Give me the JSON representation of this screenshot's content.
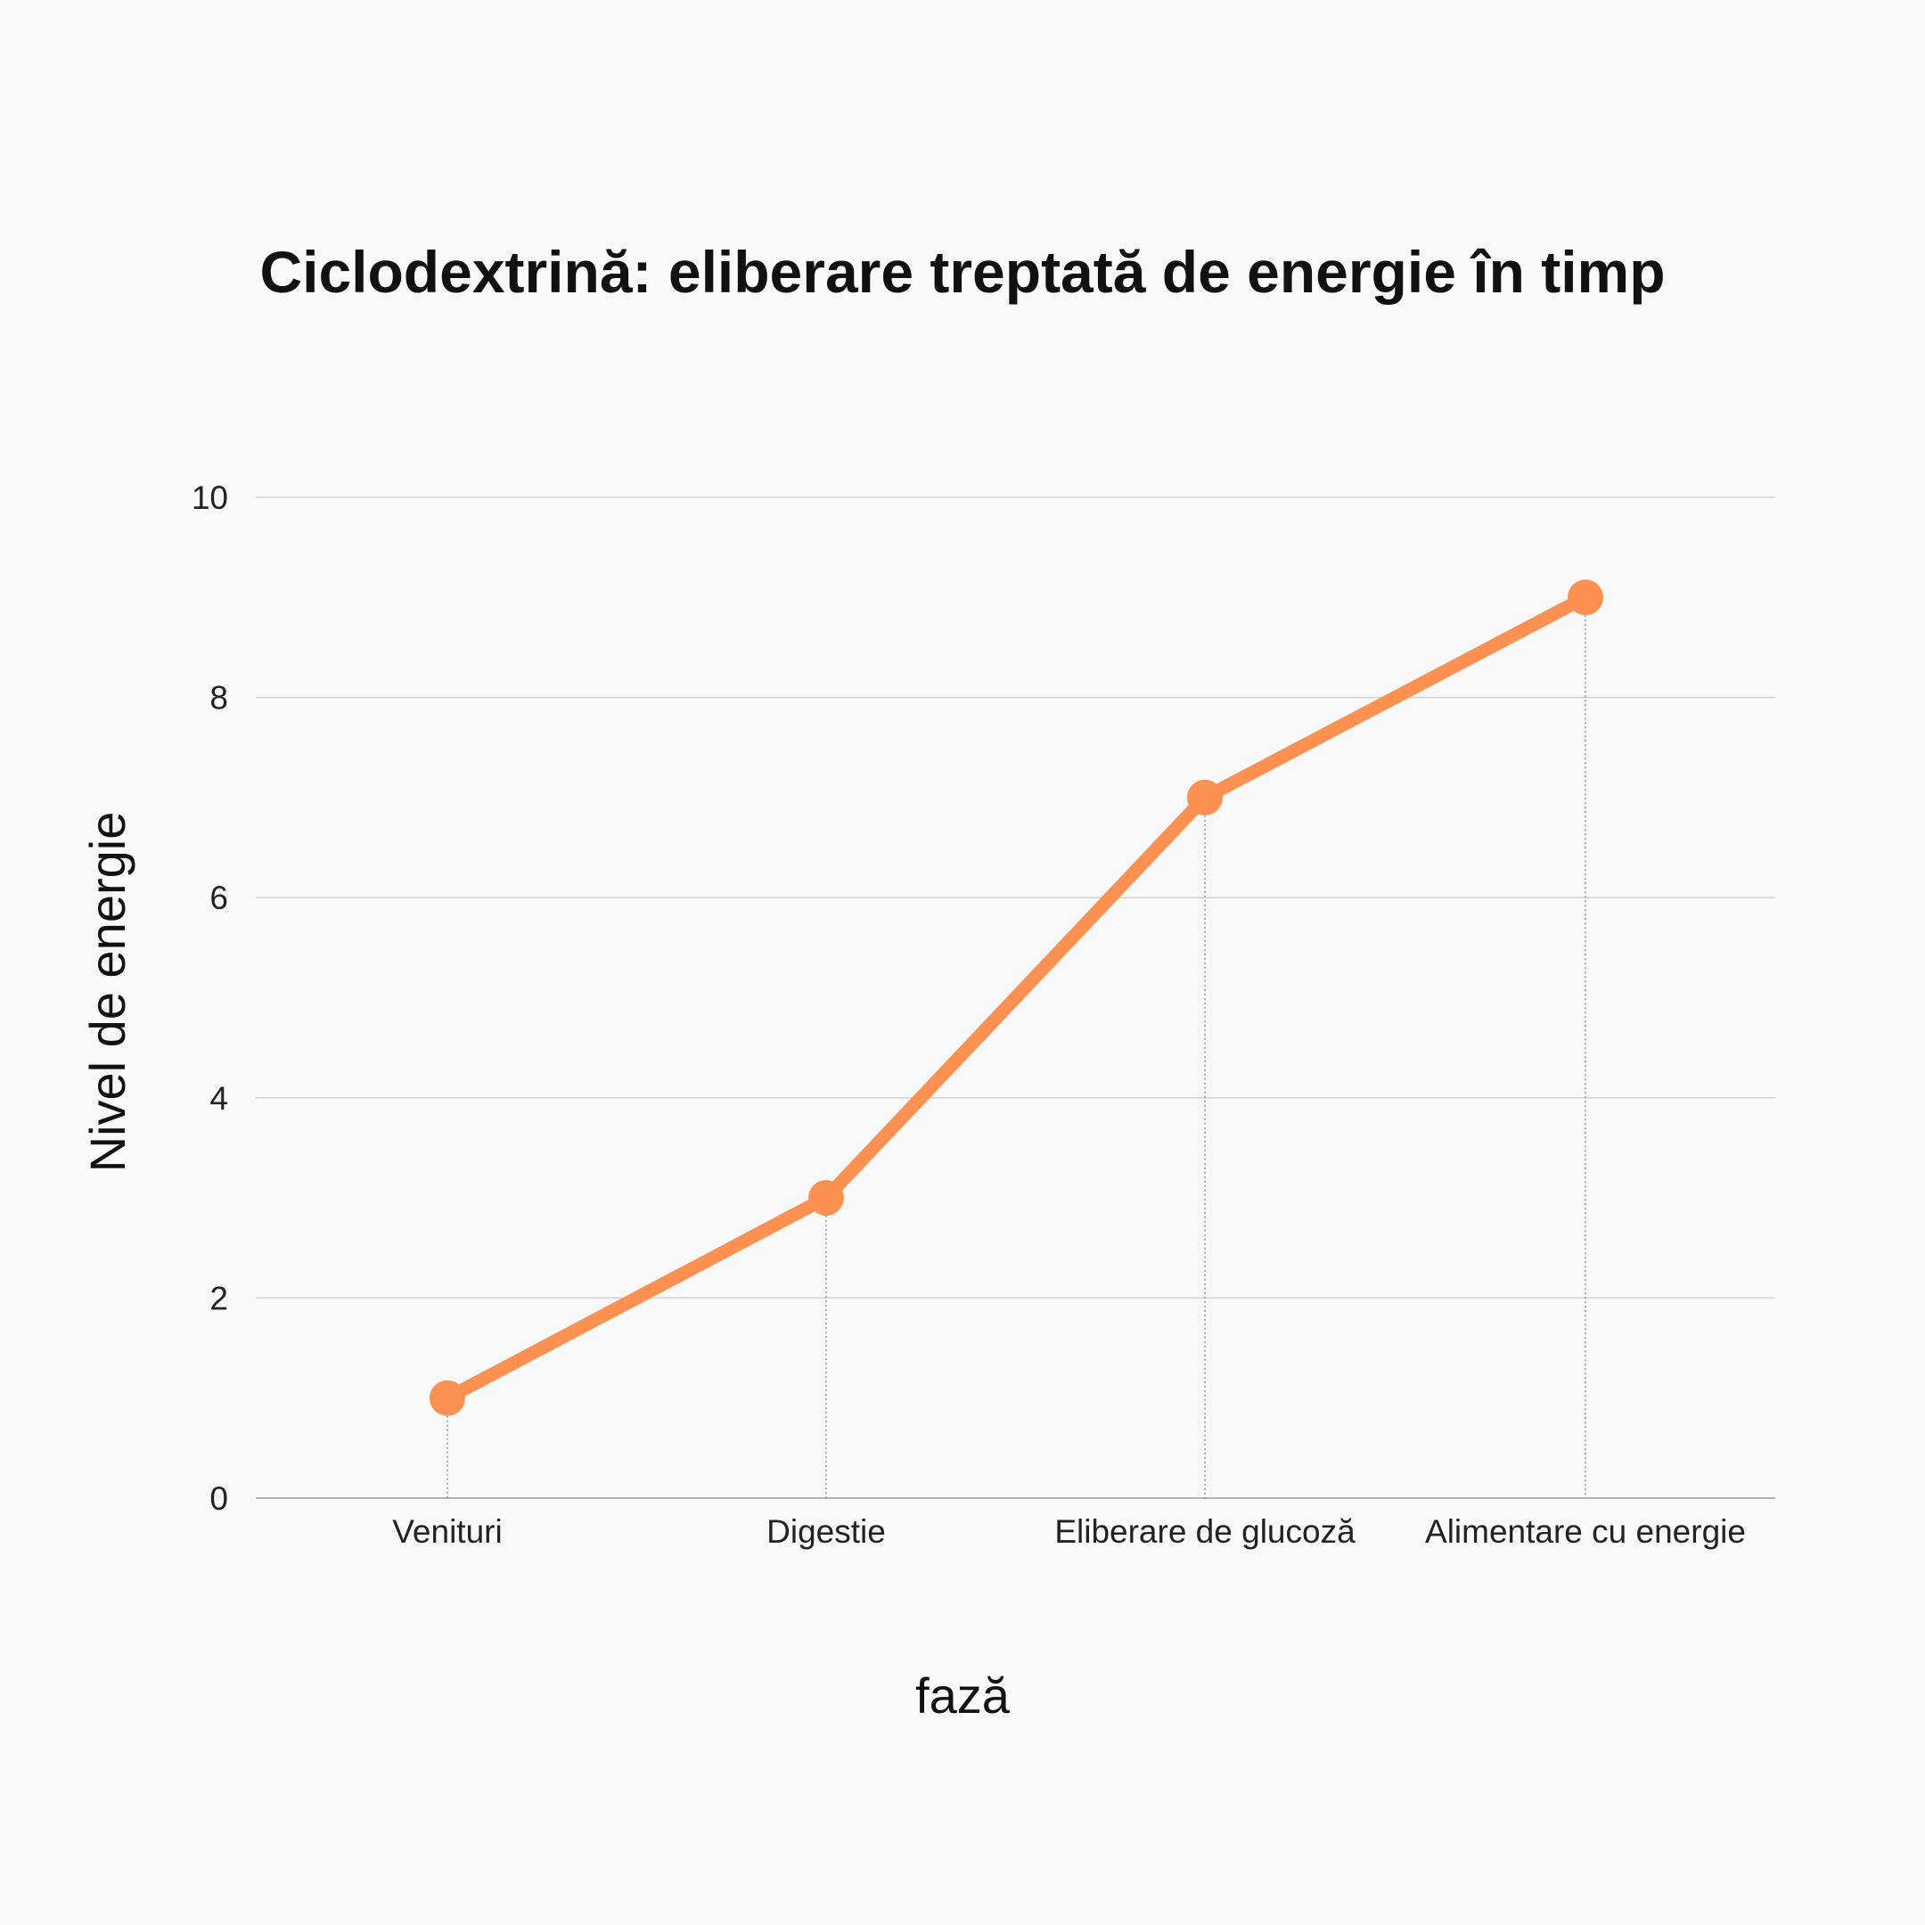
{
  "chart_data": {
    "type": "line",
    "title": "Ciclodextrină: eliberare treptată de energie în timp",
    "xlabel": "fază",
    "ylabel": "Nivel de energie",
    "categories": [
      "Venituri",
      "Digestie",
      "Eliberare de glucoză",
      "Alimentare cu energie"
    ],
    "series": [
      {
        "values": [
          1,
          3,
          7,
          9
        ]
      }
    ],
    "ylim": [
      0,
      10
    ],
    "yticks": [
      "0",
      "2",
      "4",
      "6",
      "8",
      "10"
    ],
    "grid": "horizontal",
    "legend": "none",
    "colors": {
      "line": "#fd9152",
      "background": "#f9f9f9"
    }
  }
}
